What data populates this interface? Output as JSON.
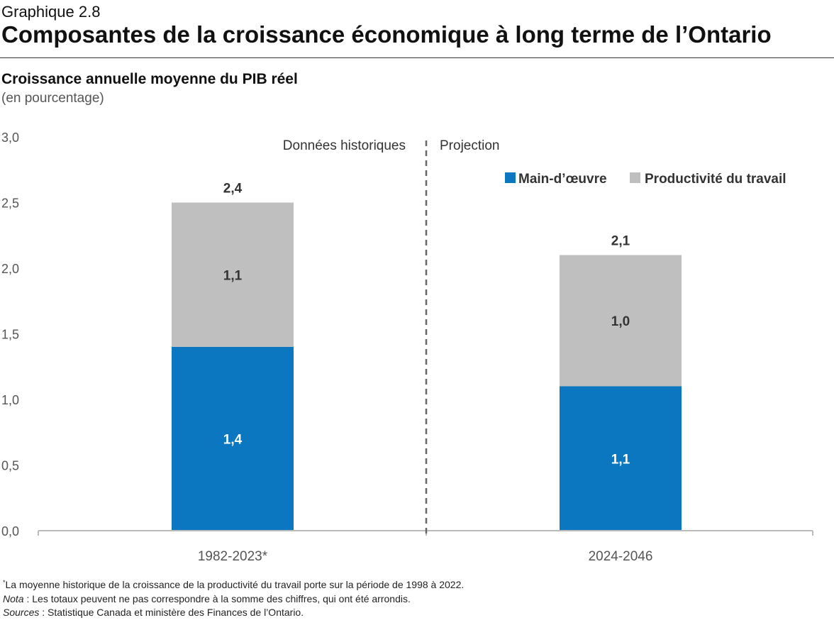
{
  "header": {
    "graphic_number": "Graphique 2.8",
    "title": "Composantes de la croissance économique à long terme de l’Ontario",
    "subtitle": "Croissance annuelle moyenne du PIB réel",
    "unit": "(en pourcentage)"
  },
  "colors": {
    "labour": "#0a77c0",
    "productivity": "#bfbfbf",
    "axis": "#bbbbbb",
    "divider": "#666666",
    "label_dark": "#333333",
    "label_light": "#ffffff"
  },
  "chart_data": {
    "type": "bar",
    "stacked": true,
    "categories": [
      "1982-2023*",
      "2024-2046"
    ],
    "series": [
      {
        "name": "Main-d’œuvre",
        "values": [
          1.4,
          1.1
        ],
        "value_labels": [
          "1,4",
          "1,1"
        ]
      },
      {
        "name": "Productivité du travail",
        "values": [
          1.1,
          1.0
        ],
        "value_labels": [
          "1,1",
          "1,0"
        ]
      }
    ],
    "totals": [
      2.4,
      2.1
    ],
    "total_labels": [
      "2,4",
      "2,1"
    ],
    "ylim": [
      0,
      3
    ],
    "yticks": [
      0,
      0.5,
      1.0,
      1.5,
      2.0,
      2.5,
      3.0
    ],
    "ytick_labels": [
      "0,0",
      "0,5",
      "1,0",
      "1,5",
      "2,0",
      "2,5",
      "3,0"
    ],
    "region_labels": [
      "Données historiques",
      "Projection"
    ],
    "legend_position": "top-right",
    "grid": false
  },
  "footnotes": {
    "asterisk_mark": "*",
    "asterisk_text": "La moyenne historique de la croissance de la productivité du travail porte sur la période de 1998 à 2022.",
    "note_label": "Nota",
    "note_text": " : Les totaux peuvent ne pas correspondre à la somme des chiffres, qui ont été arrondis.",
    "sources_label": "Sources",
    "sources_text": " : Statistique Canada et ministère des Finances de l’Ontario."
  }
}
